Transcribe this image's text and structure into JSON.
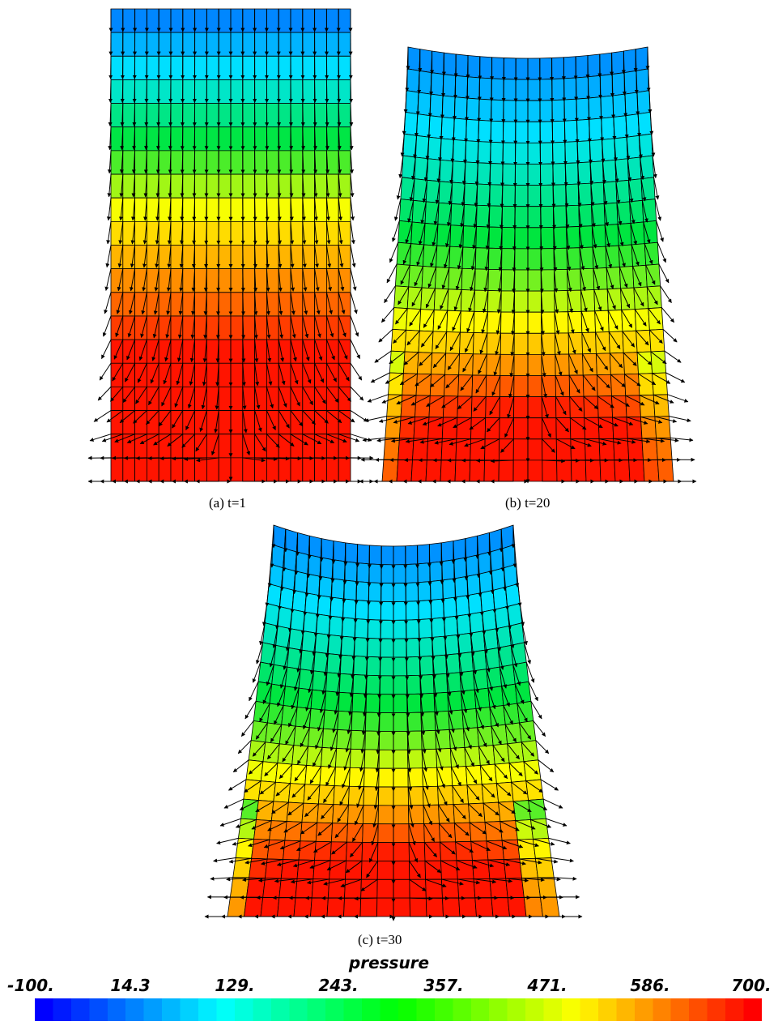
{
  "panels": [
    {
      "id": "a",
      "caption": "(a)  t=1"
    },
    {
      "id": "b",
      "caption": "(b)  t=20"
    },
    {
      "id": "c",
      "caption": "(c)  t=30"
    }
  ],
  "colorbar": {
    "title": "pressure",
    "ticks": [
      "-100.",
      "14.3",
      "129.",
      "243.",
      "357.",
      "471.",
      "586.",
      "700."
    ],
    "range": [
      -100,
      700
    ],
    "colors": [
      "#0000ff",
      "#00ffff",
      "#00ff00",
      "#ffff00",
      "#ff0000"
    ]
  }
}
